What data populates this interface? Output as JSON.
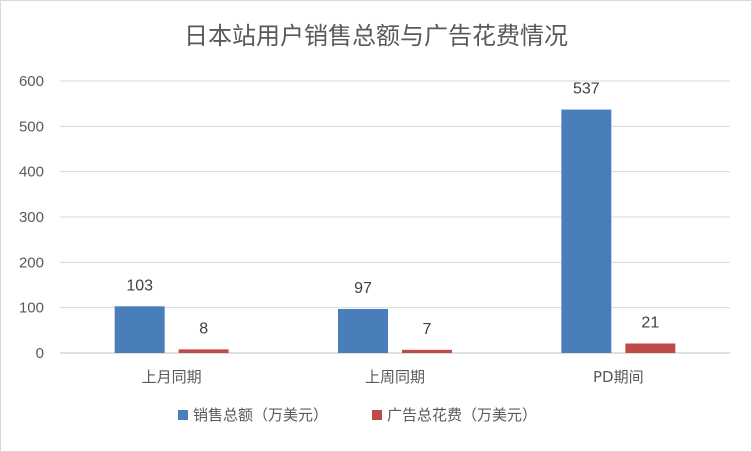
{
  "chart_data": {
    "type": "bar",
    "title": "日本站用户销售总额与广告花费情况",
    "categories": [
      "上月同期",
      "上周同期",
      "PD期间"
    ],
    "series": [
      {
        "name": "销售总额（万美元）",
        "values": [
          103,
          97,
          537
        ],
        "color": "#4a7ebb"
      },
      {
        "name": "广告总花费（万美元）",
        "values": [
          8,
          7,
          21
        ],
        "color": "#be4b48"
      }
    ],
    "ylim": [
      0,
      600
    ],
    "yticks": [
      0,
      100,
      200,
      300,
      400,
      500,
      600
    ],
    "grid": true,
    "legend": "bottom",
    "data_labels": true
  }
}
